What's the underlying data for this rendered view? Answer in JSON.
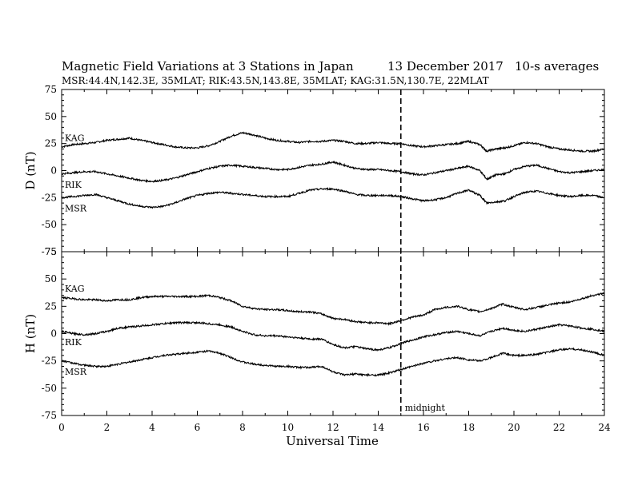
{
  "chart_data": {
    "type": "line",
    "title": "Magnetic Field Variations at 3 Stations in Japan",
    "date_label": "13 December 2017",
    "averaging_label": "10-s averages",
    "subtitle": "MSR:44.4N,142.3E, 35MLAT;  RIK:43.5N,143.8E, 35MLAT;  KAG:31.5N,130.7E, 22MLAT",
    "xlabel": "Universal Time",
    "xlim": [
      0,
      24
    ],
    "x_ticks": [
      0,
      2,
      4,
      6,
      8,
      10,
      12,
      14,
      16,
      18,
      20,
      22,
      24
    ],
    "grid": false,
    "legend": "none",
    "annotations": [
      {
        "text": "midnight",
        "x": 15,
        "style": "dashed vertical line"
      }
    ],
    "panels": [
      {
        "ylabel": "D (nT)",
        "ylim": [
          -75,
          75
        ],
        "y_ticks": [
          75,
          50,
          25,
          0,
          -25,
          -50,
          -75
        ],
        "series": [
          {
            "name": "KAG",
            "x": [
              0,
              0.5,
              1,
              1.5,
              2,
              2.5,
              3,
              3.5,
              4,
              4.5,
              5,
              5.5,
              6,
              6.5,
              7,
              7.5,
              8,
              8.5,
              9,
              9.5,
              10,
              10.5,
              11,
              11.5,
              12,
              12.5,
              13,
              13.5,
              14,
              14.5,
              15,
              15.5,
              16,
              16.5,
              17,
              17.5,
              18,
              18.5,
              18.8,
              19.2,
              19.6,
              20,
              20.5,
              21,
              21.5,
              22,
              22.5,
              23,
              23.5,
              24
            ],
            "y": [
              22,
              24,
              25,
              26,
              28,
              29,
              30,
              28,
              26,
              24,
              22,
              21,
              21,
              23,
              27,
              32,
              35,
              33,
              30,
              28,
              27,
              26,
              27,
              27,
              28,
              27,
              25,
              25,
              26,
              25,
              25,
              23,
              22,
              23,
              24,
              25,
              27,
              24,
              18,
              20,
              21,
              23,
              26,
              25,
              22,
              20,
              19,
              18,
              18,
              20
            ]
          },
          {
            "name": "RIK",
            "x": [
              0,
              0.5,
              1,
              1.5,
              2,
              2.5,
              3,
              3.5,
              4,
              4.5,
              5,
              5.5,
              6,
              6.5,
              7,
              7.5,
              8,
              8.5,
              9,
              9.5,
              10,
              10.5,
              11,
              11.5,
              12,
              12.5,
              13,
              13.5,
              14,
              14.5,
              15,
              15.5,
              16,
              16.5,
              17,
              17.5,
              18,
              18.5,
              18.8,
              19.2,
              19.6,
              20,
              20.5,
              21,
              21.5,
              22,
              22.5,
              23,
              23.5,
              24
            ],
            "y": [
              -3,
              -2,
              -1,
              -1,
              -3,
              -5,
              -7,
              -9,
              -10,
              -9,
              -7,
              -4,
              -1,
              2,
              4,
              5,
              4,
              3,
              2,
              1,
              1,
              3,
              5,
              6,
              8,
              5,
              2,
              1,
              1,
              0,
              -1,
              -3,
              -4,
              -2,
              0,
              2,
              4,
              0,
              -8,
              -4,
              -3,
              1,
              4,
              5,
              2,
              -1,
              -2,
              -1,
              0,
              1
            ]
          },
          {
            "name": "MSR",
            "x": [
              0,
              0.5,
              1,
              1.5,
              2,
              2.5,
              3,
              3.5,
              4,
              4.5,
              5,
              5.5,
              6,
              6.5,
              7,
              7.5,
              8,
              8.5,
              9,
              9.5,
              10,
              10.5,
              11,
              11.5,
              12,
              12.5,
              13,
              13.5,
              14,
              14.5,
              15,
              15.5,
              16,
              16.5,
              17,
              17.5,
              18,
              18.5,
              18.8,
              19.2,
              19.6,
              20,
              20.5,
              21,
              21.5,
              22,
              22.5,
              23,
              23.5,
              24
            ],
            "y": [
              -25,
              -24,
              -23,
              -22,
              -25,
              -28,
              -31,
              -33,
              -34,
              -33,
              -30,
              -26,
              -23,
              -21,
              -20,
              -21,
              -22,
              -23,
              -24,
              -24,
              -24,
              -21,
              -18,
              -17,
              -17,
              -19,
              -22,
              -23,
              -23,
              -23,
              -24,
              -26,
              -28,
              -27,
              -25,
              -21,
              -18,
              -23,
              -30,
              -29,
              -28,
              -24,
              -20,
              -19,
              -21,
              -23,
              -24,
              -23,
              -23,
              -25
            ]
          }
        ]
      },
      {
        "ylabel": "H (nT)",
        "ylim": [
          -75,
          75
        ],
        "y_ticks": [
          75,
          50,
          25,
          0,
          -25,
          -50,
          -75
        ],
        "series": [
          {
            "name": "KAG",
            "x": [
              0,
              0.5,
              1,
              1.5,
              2,
              2.5,
              3,
              3.5,
              4,
              4.5,
              5,
              5.5,
              6,
              6.5,
              7,
              7.5,
              8,
              8.5,
              9,
              9.5,
              10,
              10.5,
              11,
              11.5,
              12,
              12.5,
              13,
              13.5,
              14,
              14.5,
              15,
              15.5,
              16,
              16.5,
              17,
              17.5,
              18,
              18.5,
              19,
              19.5,
              20,
              20.5,
              21,
              21.5,
              22,
              22.5,
              23,
              23.5,
              24
            ],
            "y": [
              33,
              32,
              31,
              31,
              30,
              31,
              31,
              33,
              34,
              34,
              34,
              34,
              34,
              35,
              33,
              30,
              25,
              23,
              22,
              22,
              21,
              20,
              20,
              18,
              14,
              13,
              11,
              10,
              10,
              9,
              12,
              15,
              17,
              22,
              24,
              25,
              22,
              20,
              23,
              27,
              24,
              22,
              24,
              26,
              28,
              29,
              32,
              35,
              37
            ]
          },
          {
            "name": "RIK",
            "x": [
              0,
              0.5,
              1,
              1.5,
              2,
              2.5,
              3,
              3.5,
              4,
              4.5,
              5,
              5.5,
              6,
              6.5,
              7,
              7.5,
              8,
              8.5,
              9,
              9.5,
              10,
              10.5,
              11,
              11.5,
              12,
              12.5,
              13,
              13.5,
              14,
              14.5,
              15,
              15.5,
              16,
              16.5,
              17,
              17.5,
              18,
              18.5,
              19,
              19.5,
              20,
              20.5,
              21,
              21.5,
              22,
              22.5,
              23,
              23.5,
              24
            ],
            "y": [
              2,
              0,
              -1,
              0,
              2,
              5,
              6,
              7,
              8,
              9,
              10,
              10,
              10,
              9,
              8,
              6,
              2,
              -1,
              -2,
              -2,
              -3,
              -4,
              -5,
              -5,
              -10,
              -13,
              -12,
              -14,
              -15,
              -13,
              -9,
              -6,
              -3,
              -1,
              1,
              2,
              0,
              -2,
              2,
              5,
              3,
              2,
              4,
              6,
              8,
              7,
              5,
              4,
              2
            ]
          },
          {
            "name": "MSR",
            "x": [
              0,
              0.5,
              1,
              1.5,
              2,
              2.5,
              3,
              3.5,
              4,
              4.5,
              5,
              5.5,
              6,
              6.5,
              7,
              7.5,
              8,
              8.5,
              9,
              9.5,
              10,
              10.5,
              11,
              11.5,
              12,
              12.5,
              13,
              13.5,
              14,
              14.5,
              15,
              15.5,
              16,
              16.5,
              17,
              17.5,
              18,
              18.5,
              19,
              19.5,
              20,
              20.5,
              21,
              21.5,
              22,
              22.5,
              23,
              23.5,
              24
            ],
            "y": [
              -25,
              -27,
              -29,
              -30,
              -30,
              -28,
              -26,
              -24,
              -22,
              -20,
              -19,
              -18,
              -17,
              -16,
              -18,
              -22,
              -26,
              -28,
              -29,
              -30,
              -30,
              -31,
              -31,
              -30,
              -35,
              -38,
              -37,
              -38,
              -38,
              -36,
              -33,
              -30,
              -27,
              -25,
              -23,
              -22,
              -24,
              -25,
              -22,
              -18,
              -20,
              -20,
              -19,
              -17,
              -15,
              -14,
              -15,
              -17,
              -20
            ]
          }
        ]
      }
    ]
  }
}
